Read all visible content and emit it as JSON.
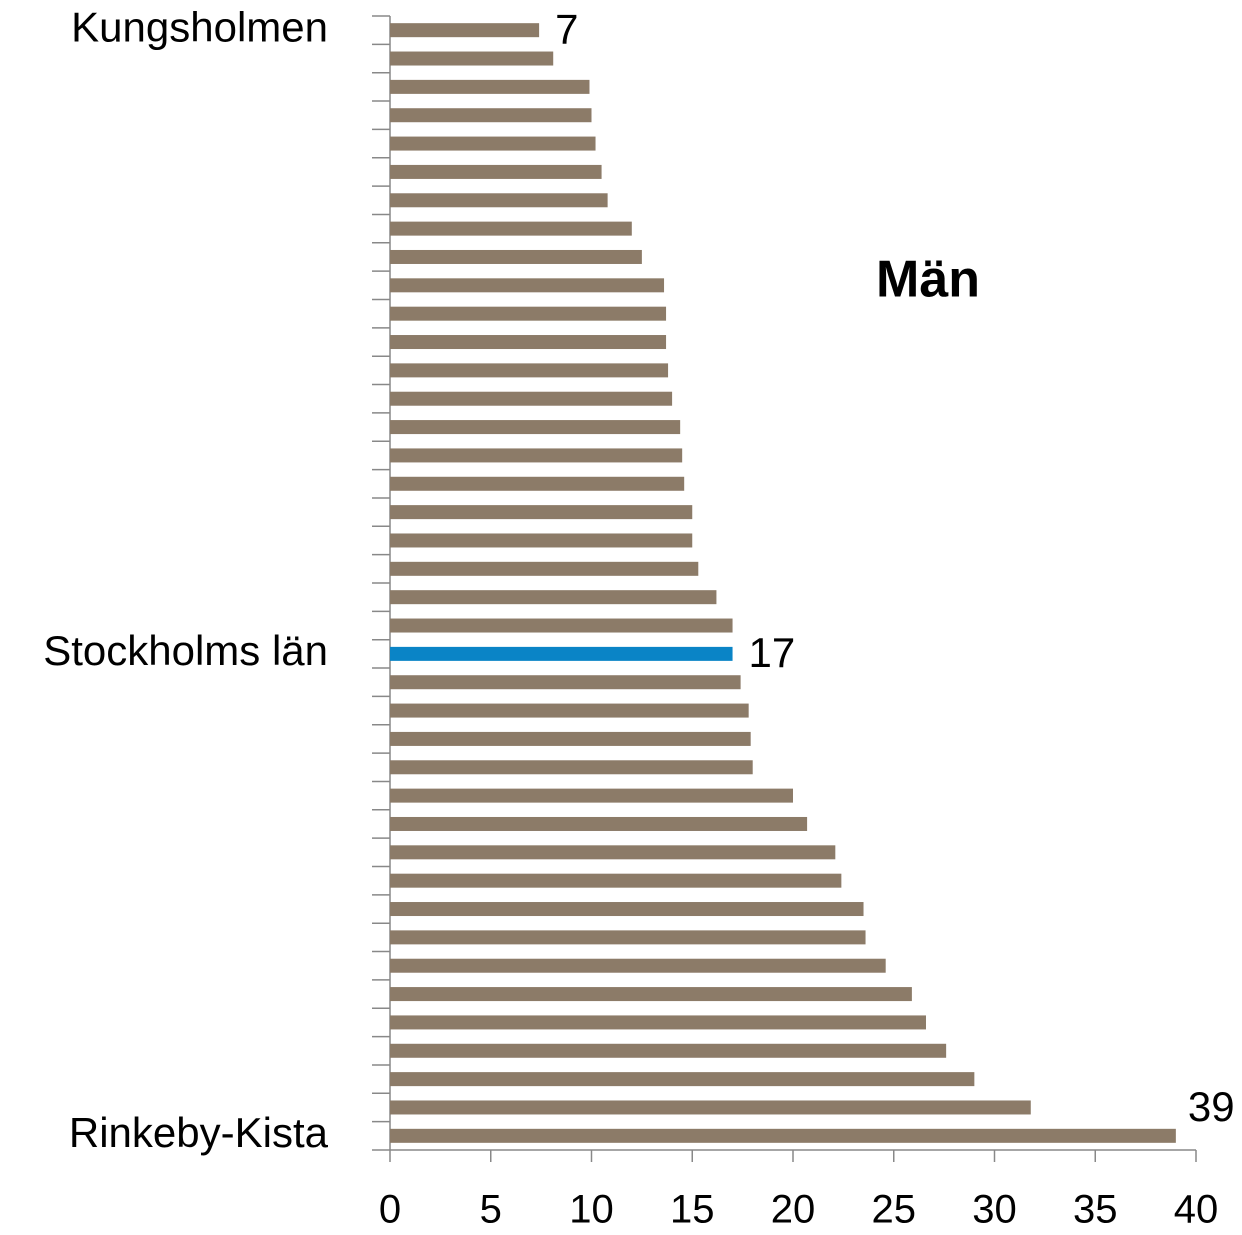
{
  "chart_data": {
    "type": "bar",
    "orientation": "horizontal",
    "title": "Män",
    "categories": [
      "Kungsholmen",
      null,
      null,
      null,
      null,
      null,
      null,
      null,
      null,
      null,
      null,
      null,
      null,
      null,
      null,
      null,
      null,
      null,
      null,
      null,
      null,
      null,
      "Stockholms län",
      null,
      null,
      null,
      null,
      null,
      null,
      null,
      null,
      null,
      null,
      null,
      null,
      null,
      null,
      null,
      null,
      "Rinkeby-Kista"
    ],
    "values": [
      7.4,
      8.1,
      9.9,
      10.0,
      10.2,
      10.5,
      10.8,
      12.0,
      12.5,
      13.6,
      13.7,
      13.7,
      13.8,
      14.0,
      14.4,
      14.5,
      14.6,
      15.0,
      15.0,
      15.3,
      16.2,
      17.0,
      17.0,
      17.4,
      17.8,
      17.9,
      18.0,
      20.0,
      20.7,
      22.1,
      22.4,
      23.5,
      23.6,
      24.6,
      25.9,
      26.6,
      27.6,
      29.0,
      31.8,
      39.0
    ],
    "value_labels": [
      "7",
      null,
      null,
      null,
      null,
      null,
      null,
      null,
      null,
      null,
      null,
      null,
      null,
      null,
      null,
      null,
      null,
      null,
      null,
      null,
      null,
      null,
      "17",
      null,
      null,
      null,
      null,
      null,
      null,
      null,
      null,
      null,
      null,
      null,
      null,
      null,
      null,
      null,
      null,
      "39"
    ],
    "color": "#8c7b68",
    "highlight_color": "#0a84c6",
    "highlight_index": 22,
    "xlim": [
      0,
      40
    ],
    "xticks": [
      0,
      5,
      10,
      15,
      20,
      25,
      30,
      35,
      40
    ],
    "grid": false
  }
}
